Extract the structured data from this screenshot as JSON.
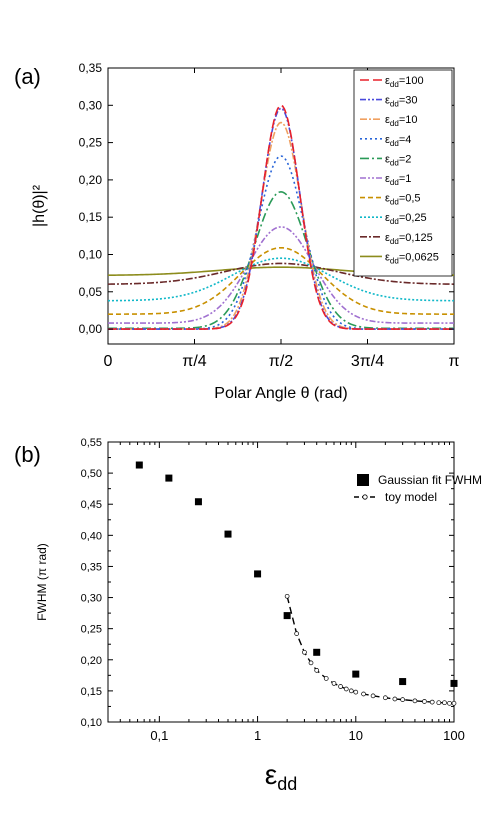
{
  "chart_data": [
    {
      "type": "line",
      "panel_label": "(a)",
      "title": "",
      "xlabel": "Polar Angle θ (rad)",
      "ylabel": "|h(θ)|²",
      "xlim": [
        0,
        3.14159
      ],
      "ylim": [
        -0.02,
        0.35
      ],
      "x_ticks": [
        {
          "value": 0,
          "label": "0"
        },
        {
          "value": 0.7854,
          "label": "π/4"
        },
        {
          "value": 1.5708,
          "label": "π/2"
        },
        {
          "value": 2.3562,
          "label": "3π/4"
        },
        {
          "value": 3.14159,
          "label": "π"
        }
      ],
      "y_ticks": [
        {
          "value": 0.0,
          "label": "0,00"
        },
        {
          "value": 0.05,
          "label": "0,05"
        },
        {
          "value": 0.1,
          "label": "0,10"
        },
        {
          "value": 0.15,
          "label": "0,15"
        },
        {
          "value": 0.2,
          "label": "0,20"
        },
        {
          "value": 0.25,
          "label": "0,25"
        },
        {
          "value": 0.3,
          "label": "0,30"
        },
        {
          "value": 0.35,
          "label": "0,35"
        }
      ],
      "legend_position": "top-right",
      "grid": false,
      "series": [
        {
          "name": "εdd=100",
          "main": "ε",
          "sub": "dd",
          "value_text": "=100",
          "peak": 0.3,
          "edge": 0.0,
          "width": 0.24,
          "color": "#e8202a",
          "dash": "9,4"
        },
        {
          "name": "εdd=30",
          "main": "ε",
          "sub": "dd",
          "value_text": "=30",
          "peak": 0.296,
          "edge": 0.0,
          "width": 0.245,
          "color": "#4a4adc",
          "dash": "6,2,2,2,2,2"
        },
        {
          "name": "εdd=10",
          "main": "ε",
          "sub": "dd",
          "value_text": "=10",
          "peak": 0.277,
          "edge": 0.0,
          "width": 0.26,
          "color": "#f0a060",
          "dash": "7,2,2,2"
        },
        {
          "name": "εdd=4",
          "main": "ε",
          "sub": "dd",
          "value_text": "=4",
          "peak": 0.232,
          "edge": 0.0,
          "width": 0.295,
          "color": "#2864d8",
          "dash": "2,3"
        },
        {
          "name": "εdd=2",
          "main": "ε",
          "sub": "dd",
          "value_text": "=2",
          "peak": 0.184,
          "edge": 0.001,
          "width": 0.34,
          "color": "#2a9a58",
          "dash": "9,3,2,3"
        },
        {
          "name": "εdd=1",
          "main": "ε",
          "sub": "dd",
          "value_text": "=1",
          "peak": 0.137,
          "edge": 0.008,
          "width": 0.42,
          "color": "#a070d0",
          "dash": "6,2,2,2,2,2"
        },
        {
          "name": "εdd=0,5",
          "main": "ε",
          "sub": "dd",
          "value_text": "=0,5",
          "peak": 0.109,
          "edge": 0.02,
          "width": 0.52,
          "color": "#c89000",
          "dash": "5,3"
        },
        {
          "name": "εdd=0,25",
          "main": "ε",
          "sub": "dd",
          "value_text": "=0,25",
          "peak": 0.095,
          "edge": 0.038,
          "width": 0.62,
          "color": "#10b8c8",
          "dash": "2,2"
        },
        {
          "name": "εdd=0,125",
          "main": "ε",
          "sub": "dd",
          "value_text": "=0,125",
          "peak": 0.088,
          "edge": 0.06,
          "width": 0.72,
          "color": "#6a2a2a",
          "dash": "7,2,2,2"
        },
        {
          "name": "εdd=0,0625",
          "main": "ε",
          "sub": "dd",
          "value_text": "=0,0625",
          "peak": 0.083,
          "edge": 0.072,
          "width": 0.8,
          "color": "#8c8c1c",
          "dash": ""
        }
      ]
    },
    {
      "type": "scatter",
      "panel_label": "(b)",
      "title": "",
      "xlabel_main": "ε",
      "xlabel_sub": "dd",
      "ylabel": "FWHM (π rad)",
      "x_scale": "log",
      "xlim": [
        0.03,
        100
      ],
      "ylim": [
        0.1,
        0.55
      ],
      "x_ticks": [
        {
          "value": 0.1,
          "label": "0,1"
        },
        {
          "value": 1,
          "label": "1"
        },
        {
          "value": 10,
          "label": "10"
        },
        {
          "value": 100,
          "label": "100"
        }
      ],
      "y_ticks": [
        {
          "value": 0.1,
          "label": "0,10"
        },
        {
          "value": 0.15,
          "label": "0,15"
        },
        {
          "value": 0.2,
          "label": "0,20"
        },
        {
          "value": 0.25,
          "label": "0,25"
        },
        {
          "value": 0.3,
          "label": "0,30"
        },
        {
          "value": 0.35,
          "label": "0,35"
        },
        {
          "value": 0.4,
          "label": "0,40"
        },
        {
          "value": 0.45,
          "label": "0,45"
        },
        {
          "value": 0.5,
          "label": "0,50"
        },
        {
          "value": 0.55,
          "label": "0,55"
        }
      ],
      "legend_position": "top-right",
      "grid": false,
      "series": [
        {
          "name": "Gaussian fit FWHM",
          "marker": "square",
          "x": [
            0.0625,
            0.125,
            0.25,
            0.5,
            1,
            2,
            4,
            10,
            30,
            100
          ],
          "y": [
            0.513,
            0.492,
            0.454,
            0.402,
            0.338,
            0.271,
            0.212,
            0.177,
            0.165,
            0.162
          ]
        },
        {
          "name": "toy model",
          "marker": "open-circle",
          "line": "dashed",
          "x": [
            2.0,
            2.5,
            3.0,
            3.5,
            4.0,
            5.0,
            6.0,
            7.0,
            8.0,
            9.0,
            10.0,
            12.0,
            15.0,
            20.0,
            25.0,
            30.0,
            40.0,
            50.0,
            60.0,
            70.0,
            80.0,
            90.0,
            100.0
          ],
          "y": [
            0.302,
            0.242,
            0.212,
            0.195,
            0.183,
            0.17,
            0.162,
            0.157,
            0.153,
            0.15,
            0.148,
            0.145,
            0.142,
            0.139,
            0.137,
            0.136,
            0.134,
            0.133,
            0.132,
            0.131,
            0.131,
            0.13,
            0.13
          ]
        }
      ]
    }
  ]
}
